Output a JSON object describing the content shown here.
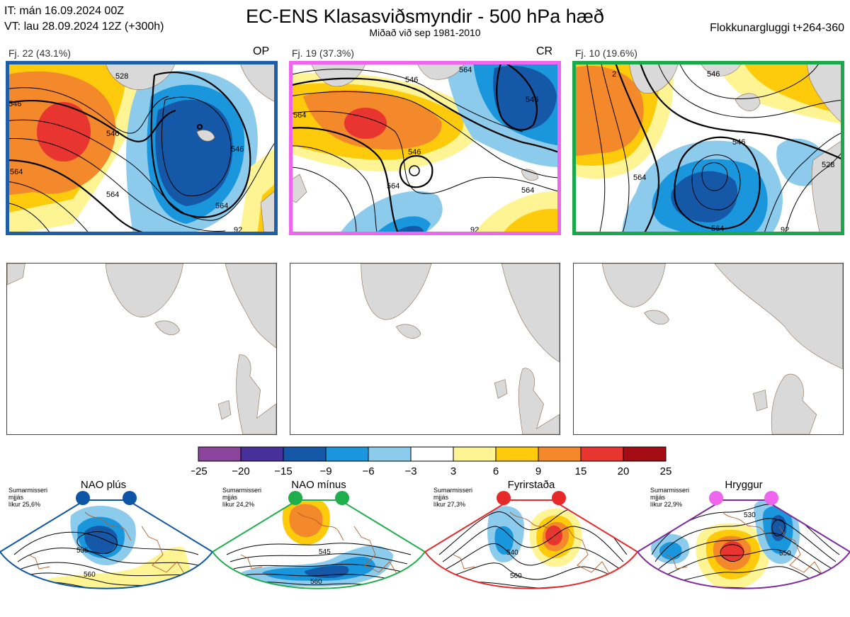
{
  "header": {
    "it_line": "IT: mán 16.09.2024 00Z",
    "vt_line": "VT: lau 28.09.2024 12Z  (+300h)",
    "title": "EC-ENS Klasasviðsmyndir - 500 hPa hæð",
    "subtitle": "Miðað við sep 1981-2010",
    "window": "Flokkunargluggi t+264-360"
  },
  "clusters": [
    {
      "label": "Fj. 22 (43.1%)",
      "tag": "OP",
      "border": "#1f5fa8",
      "contours": [
        "528",
        "546",
        "546",
        "564",
        "564",
        "546",
        "564",
        "92"
      ]
    },
    {
      "label": "Fj. 19 (37.3%)",
      "tag": "CR",
      "border": "#ee66ee",
      "contours": [
        "546",
        "546",
        "564",
        "546",
        "564",
        "564",
        "564",
        "92"
      ]
    },
    {
      "label": "Fj. 10 (19.6%)",
      "tag": "",
      "border": "#1aa84a",
      "contours": [
        "546",
        "546",
        "564",
        "528",
        "564",
        "92",
        "2"
      ]
    }
  ],
  "colorbar": {
    "ticks": [
      "−25",
      "−20",
      "−15",
      "−9",
      "−6",
      "−3",
      "3",
      "6",
      "9",
      "15",
      "20",
      "25"
    ],
    "colors": [
      "#8a449c",
      "#47309a",
      "#1558a8",
      "#1a97dc",
      "#8ccbec",
      "#ffffff",
      "#fff494",
      "#fdcb0b",
      "#f3892a",
      "#e83530",
      "#a50d14"
    ]
  },
  "regimes": [
    {
      "name": "NAO plús",
      "note1": "Sumarmisseri",
      "note2": "mjjás",
      "note3": "líkur 25,6%",
      "dot": "#0d55a6",
      "border": "#0d55a6",
      "contours": [
        "535",
        "560"
      ]
    },
    {
      "name": "NAO mínus",
      "note1": "Sumarmisseri",
      "note2": "mjjás",
      "note3": "líkur 24,2%",
      "dot": "#1fae4b",
      "border": "#1fae4b",
      "contours": [
        "545",
        "560",
        "575"
      ]
    },
    {
      "name": "Fyrirstaða",
      "note1": "Sumarmisseri",
      "note2": "mjjás",
      "note3": "líkur 27,3%",
      "dot": "#e62a2a",
      "border": "#e62a2a",
      "contours": [
        "540",
        "560",
        "575"
      ]
    },
    {
      "name": "Hryggur",
      "note1": "Sumarmisseri",
      "note2": "mjjás",
      "note3": "líkur 22,9%",
      "dot": "#ee66ee",
      "border": "#7d2aa0",
      "contours": [
        "530",
        "550",
        "575"
      ]
    }
  ]
}
